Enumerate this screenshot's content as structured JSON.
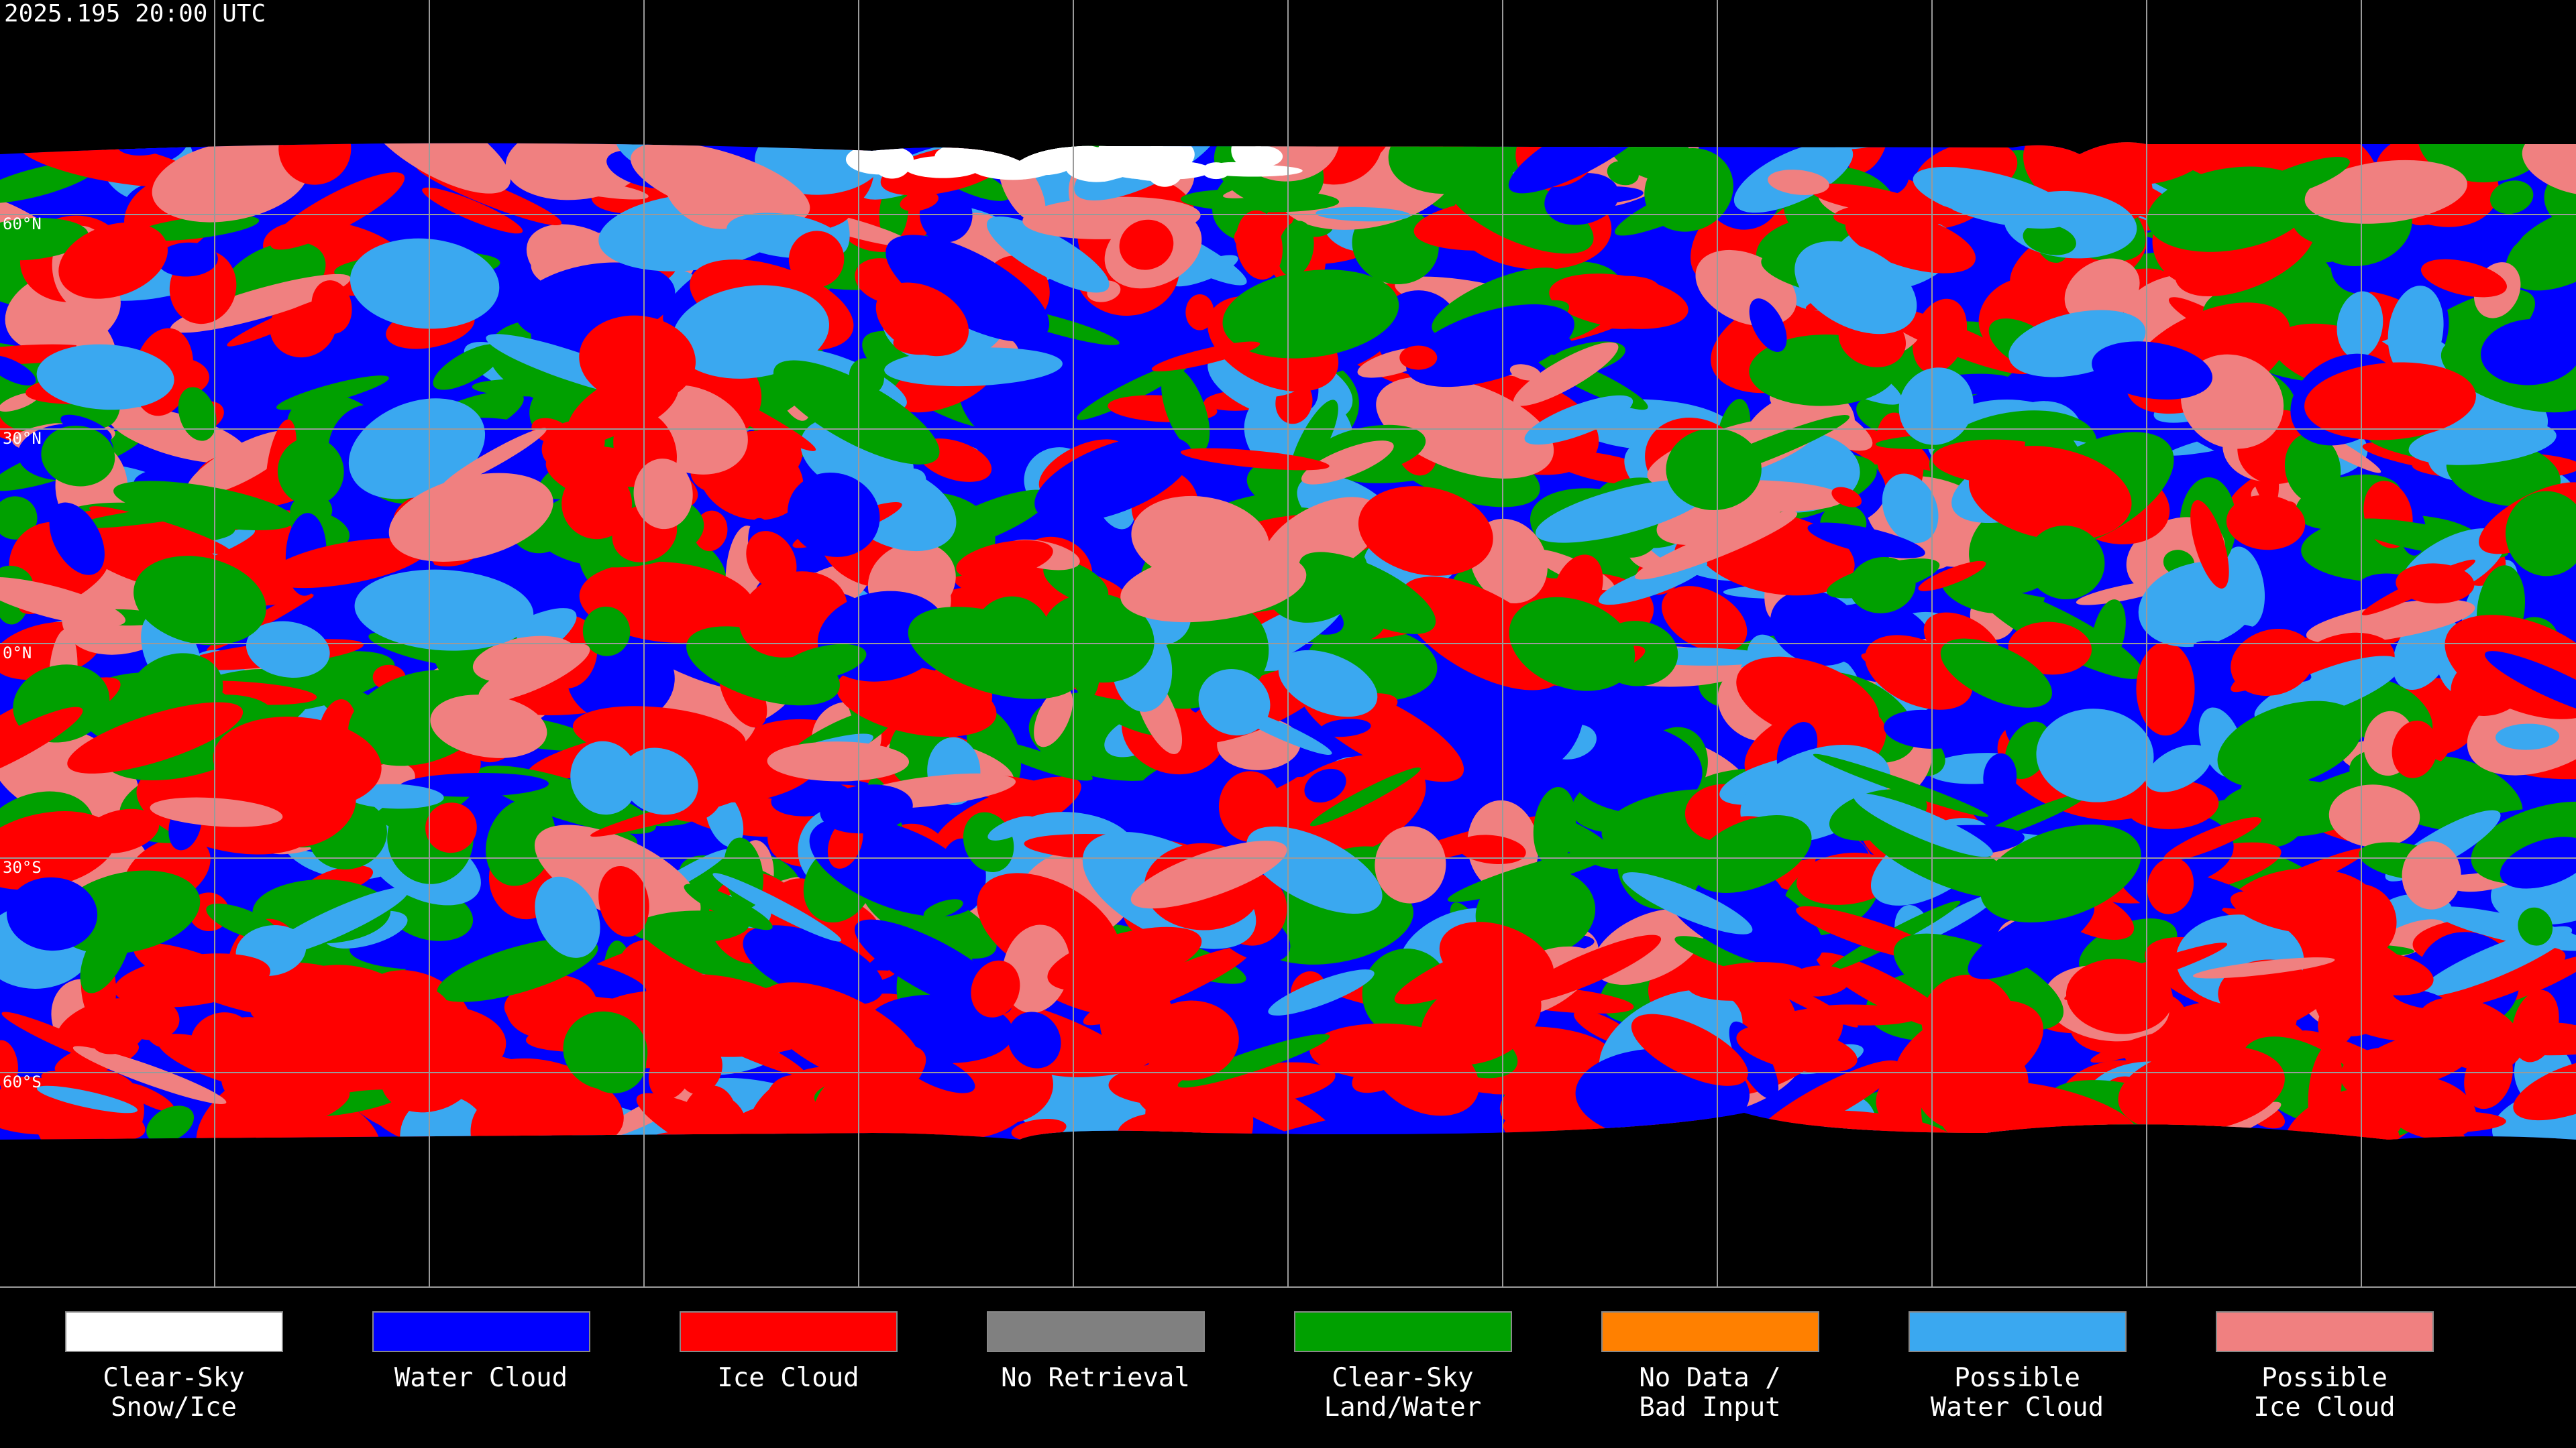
{
  "title": "2025.195 20:00 UTC",
  "latitude_labels": [
    "60°N",
    "30°N",
    "0°N",
    "30°S",
    "60°S"
  ],
  "legend": [
    {
      "label": [
        "Clear-Sky",
        "Snow/Ice"
      ],
      "color": "#ffffff"
    },
    {
      "label": [
        "Water Cloud"
      ],
      "color": "#0000ff"
    },
    {
      "label": [
        "Ice Cloud"
      ],
      "color": "#ff0000"
    },
    {
      "label": [
        "No Retrieval"
      ],
      "color": "#808080"
    },
    {
      "label": [
        "Clear-Sky",
        "Land/Water"
      ],
      "color": "#00a000"
    },
    {
      "label": [
        "No Data /",
        "Bad Input"
      ],
      "color": "#ff8000"
    },
    {
      "label": [
        "Possible",
        "Water Cloud"
      ],
      "color": "#3aa8f0"
    },
    {
      "label": [
        "Possible",
        "Ice Cloud"
      ],
      "color": "#f08080"
    }
  ]
}
